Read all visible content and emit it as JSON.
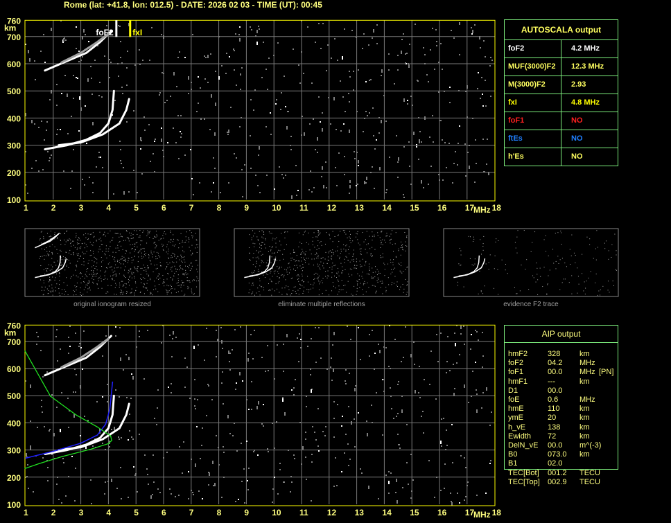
{
  "header": {
    "title": "Rome (lat: +41.8, lon: 012.5) - DATE: 2026 02 03 - TIME (UT): 00:45"
  },
  "axes": {
    "x_ticks": [
      "1",
      "2",
      "3",
      "4",
      "5",
      "6",
      "7",
      "8",
      "9",
      "10",
      "11",
      "12",
      "13",
      "14",
      "15",
      "16",
      "17",
      "18"
    ],
    "y_ticks": [
      "760",
      "700",
      "600",
      "500",
      "400",
      "300",
      "200",
      "100"
    ],
    "x_unit": "MHz",
    "y_unit": "km"
  },
  "markers": {
    "foF2_label": "foF2",
    "fxI_label": "fxI",
    "foF2_freq": 4.2,
    "fxI_freq": 4.8
  },
  "autoscala": {
    "title": "AUTOSCALA output",
    "rows": [
      {
        "label": "foF2",
        "value": "4.2 MHz",
        "color": "#ffffff"
      },
      {
        "label": "MUF(3000)F2",
        "value": "12.3 MHz",
        "color": "#ffff60"
      },
      {
        "label": "M(3000)F2",
        "value": "2.93",
        "color": "#ffff60"
      },
      {
        "label": "fxI",
        "value": "4.8 MHz",
        "color": "#ffff00"
      },
      {
        "label": "foF1",
        "value": "NO",
        "color": "#ff2020"
      },
      {
        "label": "ftEs",
        "value": "NO",
        "color": "#2080ff"
      },
      {
        "label": "h'Es",
        "value": "NO",
        "color": "#ffff60"
      }
    ]
  },
  "thumbnails": [
    {
      "caption": "original ionogram resized"
    },
    {
      "caption": "eliminate multiple reflections"
    },
    {
      "caption": "evidence F2 trace"
    }
  ],
  "aip": {
    "title": "AIP output",
    "rows": [
      [
        "hmF2",
        "328",
        "km",
        ""
      ],
      [
        "foF2",
        "04.2",
        "MHz",
        ""
      ],
      [
        "foF1",
        "00.0",
        "MHz",
        "[PN]"
      ],
      [
        "hmF1",
        "---",
        "km",
        ""
      ],
      [
        "D1",
        "00.0",
        "",
        ""
      ],
      [
        "foE",
        "0.6",
        "MHz",
        ""
      ],
      [
        "hmE",
        "110",
        "km",
        ""
      ],
      [
        "ymE",
        "20",
        "km",
        ""
      ],
      [
        "h_vE",
        "138",
        "km",
        ""
      ],
      [
        "Ewidth",
        "72",
        "km",
        ""
      ],
      [
        "DelN_vE",
        "00.0",
        "m^(-3)",
        ""
      ],
      [
        "B0",
        "073.0",
        "km",
        ""
      ],
      [
        "B1",
        "02.0",
        "",
        ""
      ],
      [
        "TEC[Bot]",
        "001.2",
        "TECU",
        ""
      ],
      [
        "TEC[Top]",
        "002.9",
        "TECU",
        ""
      ]
    ]
  },
  "chart_data": [
    {
      "type": "scatter",
      "title": "",
      "xlabel": "MHz",
      "ylabel": "km",
      "xlim": [
        1,
        18
      ],
      "ylim": [
        100,
        760
      ],
      "grid": true,
      "series": [
        {
          "name": "",
          "color": "#ffffff",
          "points": [
            [
              1.7,
              285
            ],
            [
              2.5,
              300
            ],
            [
              3.2,
              320
            ],
            [
              3.7,
              345
            ],
            [
              4.0,
              380
            ],
            [
              4.15,
              430
            ],
            [
              4.2,
              500
            ]
          ]
        },
        {
          "name": "",
          "color": "#ffffff",
          "points": [
            [
              2.2,
              300
            ],
            [
              3.0,
              310
            ],
            [
              3.8,
              340
            ],
            [
              4.4,
              380
            ],
            [
              4.65,
              430
            ],
            [
              4.75,
              470
            ]
          ]
        },
        {
          "name": "",
          "color": "#ffffff",
          "points": [
            [
              1.7,
              575
            ],
            [
              2.5,
              610
            ],
            [
              3.2,
              640
            ],
            [
              3.7,
              680
            ],
            [
              4.1,
              720
            ]
          ]
        },
        {
          "name": "",
          "color": "#a0a0a0",
          "points": [
            [
              2.3,
              605
            ],
            [
              3.0,
              640
            ],
            [
              3.6,
              680
            ],
            [
              4.0,
              710
            ]
          ]
        }
      ]
    },
    {
      "type": "line",
      "title": "",
      "xlabel": "MHz",
      "ylabel": "km",
      "xlim": [
        1,
        18
      ],
      "ylim": [
        100,
        760
      ],
      "grid": true,
      "series": [
        {
          "name": "",
          "color": "#ffffff",
          "points": [
            [
              1.7,
              285
            ],
            [
              2.5,
              300
            ],
            [
              3.2,
              320
            ],
            [
              3.7,
              345
            ],
            [
              4.0,
              380
            ],
            [
              4.15,
              430
            ],
            [
              4.2,
              500
            ]
          ]
        },
        {
          "name": "",
          "color": "#ffffff",
          "points": [
            [
              2.2,
              300
            ],
            [
              3.0,
              310
            ],
            [
              3.8,
              340
            ],
            [
              4.4,
              380
            ],
            [
              4.65,
              430
            ],
            [
              4.75,
              470
            ]
          ]
        },
        {
          "name": "",
          "color": "#ffffff",
          "points": [
            [
              1.7,
              575
            ],
            [
              2.5,
              610
            ],
            [
              3.2,
              640
            ],
            [
              3.7,
              680
            ],
            [
              4.1,
              720
            ]
          ]
        },
        {
          "name": "",
          "color": "#a0a0a0",
          "points": [
            [
              2.3,
              605
            ],
            [
              3.0,
              640
            ],
            [
              3.6,
              680
            ],
            [
              4.0,
              710
            ]
          ]
        },
        {
          "name": "",
          "color": "#2020ff",
          "points": [
            [
              1.0,
              270
            ],
            [
              2.0,
              295
            ],
            [
              3.0,
              325
            ],
            [
              3.6,
              355
            ],
            [
              3.9,
              395
            ],
            [
              4.05,
              450
            ],
            [
              4.1,
              500
            ],
            [
              4.15,
              550
            ]
          ]
        },
        {
          "name": "",
          "color": "#20e020",
          "points": [
            [
              0.98,
              664
            ],
            [
              1.9,
              498
            ],
            [
              2.83,
              429
            ],
            [
              3.58,
              386
            ],
            [
              4.08,
              352
            ],
            [
              4.12,
              335
            ],
            [
              3.99,
              323
            ],
            [
              3.33,
              302
            ],
            [
              2.33,
              276
            ],
            [
              1.49,
              250
            ],
            [
              0.98,
              232
            ]
          ]
        }
      ]
    }
  ]
}
